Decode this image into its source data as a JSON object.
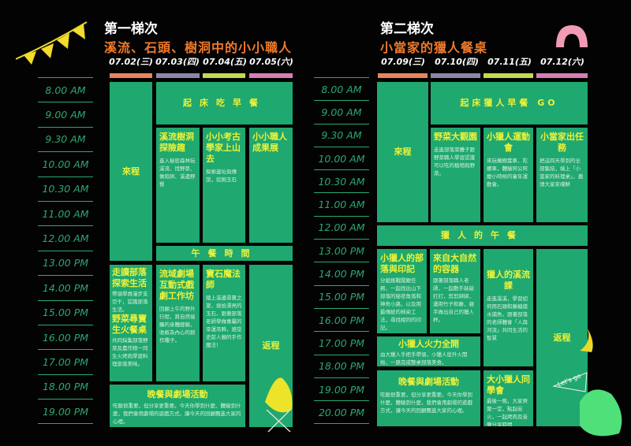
{
  "left": {
    "title": "第一梯次",
    "subtitle": "溪流、石頭、樹洞中的小小職人",
    "dates": [
      "07.02(三)",
      "07.03(四)",
      "07.04(五)",
      "07.05(六)"
    ],
    "times": [
      "8.00  AM",
      "9.00  AM",
      "9.30  AM",
      "10.00 AM",
      "10.30 AM",
      "11.00 AM",
      "12.00 AM",
      "13.00 PM",
      "14.00 PM",
      "15.00 PM",
      "16.00 PM",
      "17.00 PM",
      "18.00 PM",
      "19.00 PM"
    ],
    "arrival": "來程",
    "breakfast": "起床吃早餐",
    "a1": {
      "h": "溪流樹洞探險趣",
      "t": "進入秘密森林玩溪流、找野菜、做陷阱、溪邊野餐"
    },
    "a2": {
      "h": "小小考古學家上山去",
      "t": "探索遺址與傳說，挖掘玉石"
    },
    "a3": {
      "h": "小小職人成果展"
    },
    "lunch": "午餐時間",
    "p1": {
      "h1": "走讀部落探索生活",
      "t1": "帶領學員漫步支亞干，認識部落生活。",
      "h2": "野菜尋寶生火餐桌",
      "t2": "共同採集部落野菜及農作物一同生火烤肉學習料理部落美味。"
    },
    "p2": {
      "h": "流域劇場互動式戲劇工作坊",
      "t": "回顧上午的野外行程，將自然接觸的身體經驗，收斂為內心的創作種子。"
    },
    "p3": {
      "h": "寶石魔法師",
      "t": "踏上溪邊尋寶之旅，撿拾漂亮的玉石，跟著部落老師學做專屬的幸運吊飾，感受史前人類的手作魔法！"
    },
    "return": "返程",
    "dinner": {
      "h": "晚餐與劇場活動",
      "t": "吃飯很重要，但分享更重要。今天你學到什麼、體驗到什麼，我們會用劇場的遊戲方式，讓今天的回顧飄進大家的心裡。"
    }
  },
  "right": {
    "title": "第二梯次",
    "subtitle": "小當家的獵人餐桌",
    "dates": [
      "07.09(三)",
      "07.10(四)",
      "07.11(五)",
      "07.12(六)"
    ],
    "times": [
      "8.00  AM",
      "9.00  AM",
      "9.30  AM",
      "10.00 AM",
      "10.30 AM",
      "11.00 AM",
      "12.00 AM",
      "13.00 PM",
      "14.00 PM",
      "15.00 PM",
      "16.00 PM",
      "17.00 PM",
      "18.00 PM",
      "19.00 PM",
      "20.00 PM"
    ],
    "arrival": "來程",
    "breakfast": "起床獵人早餐 GO",
    "a1": {
      "h": "野菜大觀園",
      "t": "走進部落菜攤子跟野菜職人學習認識可以吃的植物與野菜。"
    },
    "a2": {
      "h": "小獵人運動會",
      "t": "來玩檳榔葉車、陀螺車，體驗阿公阿嬤小時候的童年運動會。"
    },
    "a3": {
      "h": "小當家出任務",
      "t": "把這四天學到的全部集結，端上「小當家的料理桌」，邀請大家來嚐鮮"
    },
    "lunch": "獵人的午餐",
    "p1": {
      "h": "小獵人的部落與印記",
      "t": "分組挑戰闖敵任務，一起找出山下部落的秘密角落和神奇小路，以及用最傳統的柿染工法，尋找相同的印記。"
    },
    "p2": {
      "h": "來自大自然的容器",
      "t": "跟著部落職人老師，一起動手敲敲打打，剪剪綁綁，運用竹子和藤，親手做出自己的獵人杯。"
    },
    "p3": {
      "h": "獵人的溪流課",
      "t": "走進溪溪，學習如何用石頭和藤編擋水捕魚，跟著部落的老師體會「人與河流」共同生活的智慧"
    },
    "return": "返程",
    "fire": {
      "h": "小獵人火力全開",
      "t": "由大獵人手把手帶領，小獵人從升火開始，一路完成整桌部落美食。"
    },
    "dinner": {
      "h": "晚餐與劇場活動",
      "t": "吃飯很重要，但分享更重要。今天你學到什麼，體驗到什麼，我們會用劇場的遊戲方式，讓今天的回顧飄進大家的心裡。"
    },
    "reunion": {
      "h": "大小獵人同學會",
      "t": "最後一晚，大家齊聚一堂，點起炭火，一起烤肉及音樂分享時間"
    },
    "flag": "Let's go"
  },
  "colors": {
    "green": "#1fa86f",
    "yellow": "#ecf23a",
    "orange": "#f07a2a",
    "bars": [
      "#e8845f",
      "#8b87a8",
      "#c5d94a",
      "#d67fb3"
    ]
  }
}
